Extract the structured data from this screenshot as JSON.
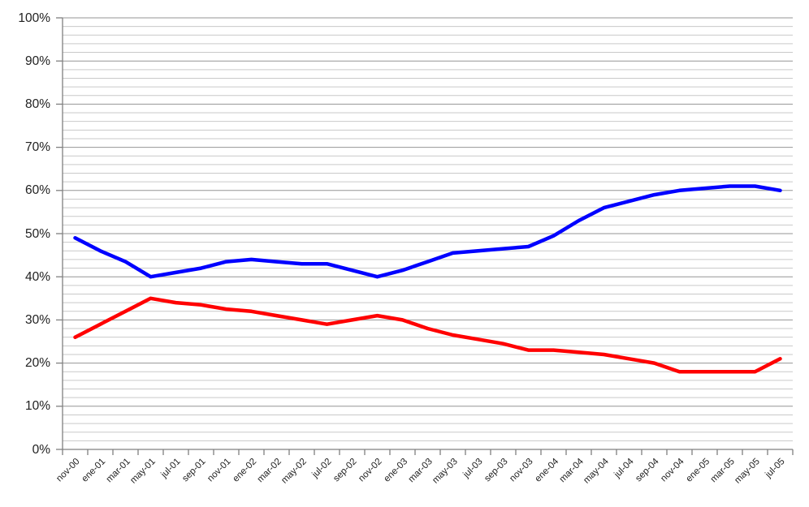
{
  "chart_data": {
    "type": "line",
    "title": "",
    "xlabel": "",
    "ylabel": "",
    "legend": "none",
    "grid": {
      "minor_on": true,
      "major_color": "#969696",
      "minor_color": "#c9c9c9",
      "axis_color": "#808080"
    },
    "y_axis": {
      "min": 0,
      "max": 100,
      "major_step": 10,
      "minor_step": 2,
      "tick_labels": [
        "0%",
        "10%",
        "20%",
        "30%",
        "40%",
        "50%",
        "60%",
        "70%",
        "80%",
        "90%",
        "100%"
      ]
    },
    "categories": [
      "nov-00",
      "ene-01",
      "mar-01",
      "may-01",
      "jul-01",
      "sep-01",
      "nov-01",
      "ene-02",
      "mar-02",
      "may-02",
      "jul-02",
      "sep-02",
      "nov-02",
      "ene-03",
      "mar-03",
      "may-03",
      "jul-03",
      "sep-03",
      "nov-03",
      "ene-04",
      "mar-04",
      "may-04",
      "jul-04",
      "sep-04",
      "nov-04",
      "ene-05",
      "mar-05",
      "may-05",
      "jul-05"
    ],
    "series": [
      {
        "name": "blue",
        "color": "#0000ff",
        "values": [
          49,
          46,
          43.5,
          40,
          41,
          42,
          43.5,
          44,
          43.5,
          43,
          43,
          41.5,
          40,
          41.5,
          43.5,
          45.5,
          46,
          46.5,
          47,
          49.5,
          53,
          56,
          57.5,
          59,
          60,
          60.5,
          61,
          61,
          60
        ]
      },
      {
        "name": "red",
        "color": "#ff0000",
        "values": [
          26,
          29,
          32,
          35,
          34,
          33.5,
          32.5,
          32,
          31,
          30,
          29,
          30,
          31,
          30,
          28,
          26.5,
          25.5,
          24.5,
          23,
          23,
          22.5,
          22,
          21,
          20,
          18,
          18,
          18,
          18,
          21
        ]
      }
    ]
  }
}
